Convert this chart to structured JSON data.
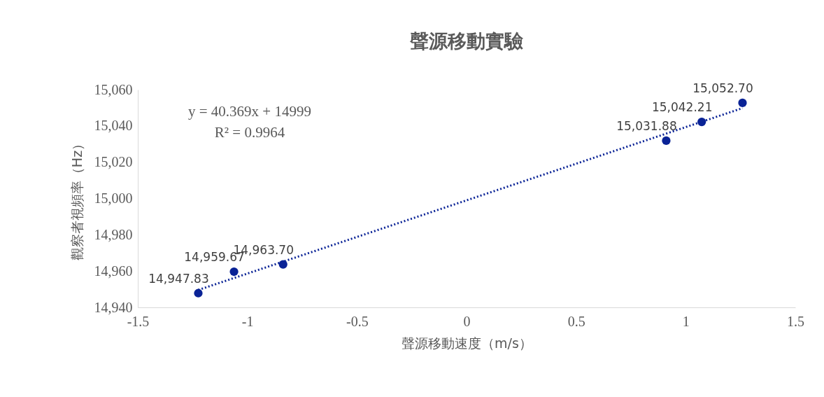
{
  "chart_data": {
    "type": "scatter",
    "title": "聲源移動實驗",
    "xlabel": "聲源移動速度（m/s）",
    "ylabel": "觀察者視頻率（Hz）",
    "x": [
      -1.224,
      -1.061,
      -0.837,
      0.911,
      1.073,
      1.259
    ],
    "series": [
      {
        "type": "scatter",
        "color": "#0a2396",
        "marker": "circle",
        "values": [
          14947.83,
          14959.67,
          14963.7,
          15031.88,
          15042.21,
          15052.7
        ],
        "value_labels": [
          "14,947.83",
          "14,959.67",
          "14,963.70",
          "15,031.88",
          "15,042.21",
          "15,052.70"
        ]
      },
      {
        "type": "line",
        "color": "#0a2396",
        "line_style": "dotted",
        "x": [
          -1.224,
          1.259
        ],
        "values": [
          14949.6,
          15049.8
        ]
      }
    ],
    "xlim": [
      -1.5,
      1.5
    ],
    "xticks": [
      -1.5,
      -1,
      -0.5,
      0,
      0.5,
      1,
      1.5
    ],
    "ylim": [
      14940,
      15060
    ],
    "yticks": [
      {
        "value": 14940,
        "label": "14,940"
      },
      {
        "value": 14960,
        "label": "14,960"
      },
      {
        "value": 14980,
        "label": "14,980"
      },
      {
        "value": 15000,
        "label": "15,000"
      },
      {
        "value": 15020,
        "label": "15,020"
      },
      {
        "value": 15040,
        "label": "15,040"
      },
      {
        "value": 15060,
        "label": "15,060"
      }
    ],
    "annotations": [
      "y = 40.369x + 14999",
      "R² = 0.9964"
    ],
    "grid": false
  }
}
